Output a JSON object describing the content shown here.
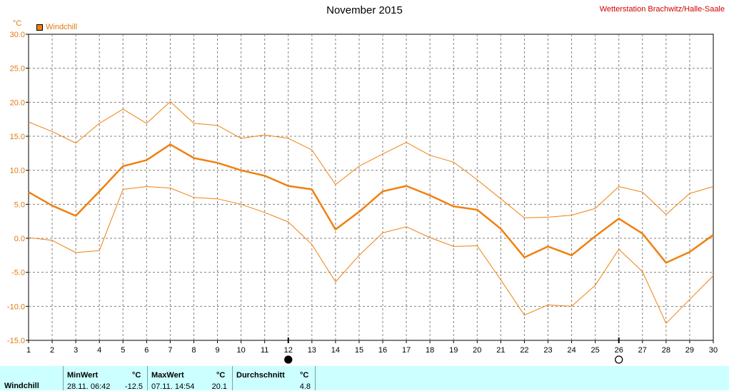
{
  "title": "November 2015",
  "station": "Wetterstation Brachwitz/Halle-Saale",
  "unit": "°C",
  "legend": {
    "label": "Windchill",
    "color": "#f08010"
  },
  "chart_data": {
    "type": "line",
    "title": "November 2015",
    "ylabel": "°C",
    "ylim": [
      -15,
      30
    ],
    "yticks": [
      "30.0",
      "25.0",
      "20.0",
      "15.0",
      "10.0",
      "5.0",
      "0.0",
      "-5.0",
      "-10.0",
      "-15.0"
    ],
    "x": [
      1,
      2,
      3,
      4,
      5,
      6,
      7,
      8,
      9,
      10,
      11,
      12,
      13,
      14,
      15,
      16,
      17,
      18,
      19,
      20,
      21,
      22,
      23,
      24,
      25,
      26,
      27,
      28,
      29,
      30
    ],
    "grid": true,
    "series": [
      {
        "name": "Windchill",
        "role": "max",
        "color": "#f08010",
        "values": [
          17.1,
          15.7,
          14.0,
          16.9,
          19.0,
          16.9,
          20.1,
          16.9,
          16.6,
          14.7,
          15.2,
          14.7,
          13.0,
          7.9,
          10.6,
          12.4,
          14.1,
          12.2,
          11.2,
          8.6,
          5.8,
          3.0,
          3.1,
          3.4,
          4.4,
          7.6,
          6.8,
          3.5,
          6.6,
          7.6
        ]
      },
      {
        "name": "Windchill",
        "role": "avg",
        "color": "#f08010",
        "values": [
          6.8,
          4.8,
          3.3,
          6.9,
          10.6,
          11.5,
          13.8,
          11.8,
          11.1,
          10.0,
          9.2,
          7.7,
          7.2,
          1.3,
          3.9,
          6.9,
          7.7,
          6.3,
          4.7,
          4.2,
          1.4,
          -2.8,
          -1.2,
          -2.5,
          0.3,
          2.9,
          0.7,
          -3.6,
          -2.0,
          0.5
        ]
      },
      {
        "name": "Windchill",
        "role": "min",
        "color": "#f08010",
        "values": [
          0.1,
          -0.3,
          -2.1,
          -1.8,
          7.2,
          7.6,
          7.4,
          6.0,
          5.8,
          5.0,
          3.8,
          2.4,
          -0.9,
          -6.4,
          -2.5,
          0.8,
          1.7,
          0.1,
          -1.2,
          -1.1,
          -6.1,
          -11.3,
          -9.8,
          -10.0,
          -6.9,
          -1.6,
          -4.9,
          -12.5,
          -9.0,
          -5.5
        ]
      }
    ],
    "moon": [
      {
        "day": 12,
        "phase": "new-moon"
      },
      {
        "day": 26,
        "phase": "full-moon"
      }
    ]
  },
  "summary": {
    "row_label": "Windchill",
    "min": {
      "header": "MinWert",
      "unit": "°C",
      "when": "28.11.  06:42",
      "value": "-12.5"
    },
    "max": {
      "header": "MaxWert",
      "unit": "°C",
      "when": "07.11.  14:54",
      "value": "20.1"
    },
    "avg": {
      "header": "Durchschnitt",
      "unit": "°C",
      "value": "4.8"
    }
  }
}
